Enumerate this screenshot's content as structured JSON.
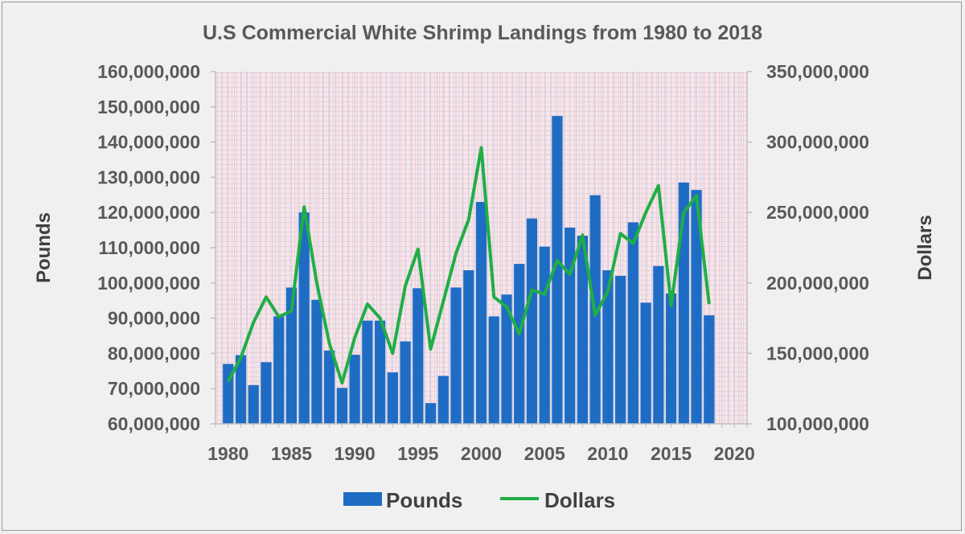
{
  "chart_data": {
    "type": "bar",
    "title": "U.S Commercial White Shrimp Landings from 1980 to 2018",
    "xlabel": "",
    "ylabel": "Pounds",
    "y2label": "Dollars",
    "xlim": [
      1979,
      2021
    ],
    "ylim": [
      60000000,
      160000000
    ],
    "y2lim": [
      100000000,
      350000000
    ],
    "x_ticks": [
      "1980",
      "1985",
      "1990",
      "1995",
      "2000",
      "2005",
      "2010",
      "2015",
      "2020"
    ],
    "y_ticks": [
      "160,000,000",
      "150,000,000",
      "140,000,000",
      "130,000,000",
      "120,000,000",
      "110,000,000",
      "100,000,000",
      "90,000,000",
      "80,000,000",
      "70,000,000",
      "60,000,000"
    ],
    "y2_ticks": [
      "350,000,000",
      "300,000,000",
      "250,000,000",
      "200,000,000",
      "150,000,000",
      "100,000,000"
    ],
    "legend_position": "bottom",
    "grid": true,
    "x": [
      1980,
      1981,
      1982,
      1983,
      1984,
      1985,
      1986,
      1987,
      1988,
      1989,
      1990,
      1991,
      1992,
      1993,
      1994,
      1995,
      1996,
      1997,
      1998,
      1999,
      2000,
      2001,
      2002,
      2003,
      2004,
      2005,
      2006,
      2007,
      2008,
      2009,
      2010,
      2011,
      2012,
      2013,
      2014,
      2015,
      2016,
      2017,
      2018
    ],
    "series": [
      {
        "name": "Pounds",
        "type": "bar",
        "axis": "left",
        "color": "#1f6cc4",
        "values": [
          77000000,
          79500000,
          71000000,
          77500000,
          90500000,
          98700000,
          120000000,
          95200000,
          80800000,
          70200000,
          79600000,
          89300000,
          89300000,
          74600000,
          83400000,
          98500000,
          65900000,
          73600000,
          98700000,
          103600000,
          123000000,
          90500000,
          96700000,
          105400000,
          118300000,
          110300000,
          147400000,
          115700000,
          113400000,
          124900000,
          103600000,
          102000000,
          117200000,
          94400000,
          104800000,
          97000000,
          128500000,
          126400000,
          90800000
        ]
      },
      {
        "name": "Dollars",
        "type": "line",
        "axis": "right",
        "color": "#1fae46",
        "values": [
          130000000,
          147000000,
          172000000,
          190000000,
          176000000,
          180000000,
          254000000,
          200000000,
          157000000,
          129000000,
          161000000,
          185000000,
          175000000,
          150000000,
          198000000,
          224000000,
          153000000,
          187000000,
          221000000,
          245000000,
          296000000,
          190000000,
          183000000,
          164000000,
          195000000,
          192000000,
          216000000,
          206000000,
          234000000,
          177000000,
          194000000,
          235000000,
          228000000,
          250000000,
          269000000,
          184000000,
          250000000,
          262000000,
          185000000
        ]
      }
    ]
  }
}
